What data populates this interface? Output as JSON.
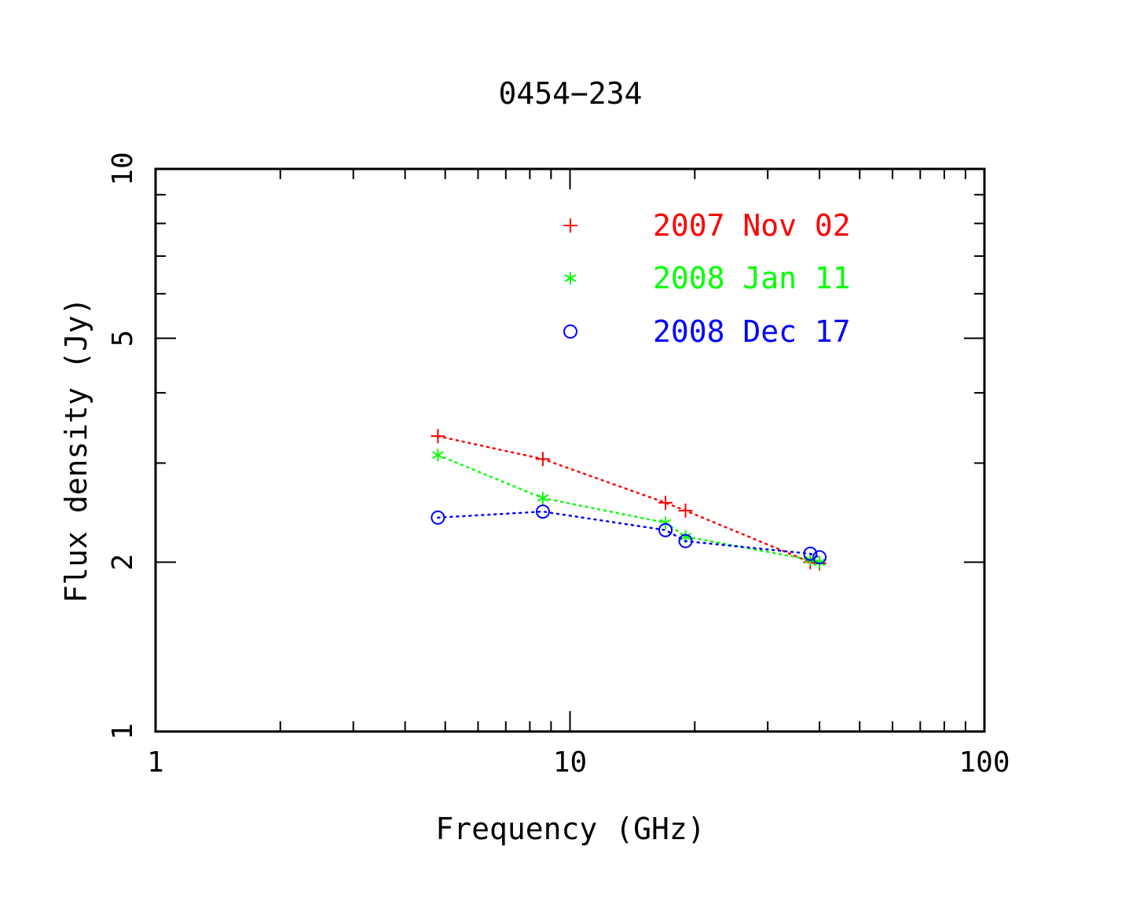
{
  "chart_data": {
    "type": "scatter",
    "title": "0454−234",
    "xlabel": "Frequency (GHz)",
    "ylabel": "Flux density (Jy)",
    "xscale": "log",
    "yscale": "log",
    "xlim": [
      1,
      100
    ],
    "ylim": [
      1,
      10
    ],
    "xticks": [
      {
        "value": 1,
        "label": "1"
      },
      {
        "value": 10,
        "label": "10"
      },
      {
        "value": 100,
        "label": "100"
      }
    ],
    "yticks": [
      {
        "value": 1,
        "label": "1"
      },
      {
        "value": 2,
        "label": "2"
      },
      {
        "value": 5,
        "label": "5"
      },
      {
        "value": 10,
        "label": "10"
      }
    ],
    "grid": false,
    "legend_position": "top-right",
    "series": [
      {
        "name": "2007 Nov 02",
        "color": "#ff0000",
        "marker": "plus",
        "line": "dotted",
        "x": [
          4.8,
          8.6,
          17,
          19,
          38,
          40
        ],
        "y": [
          3.35,
          3.05,
          2.55,
          2.47,
          2.0,
          1.99
        ]
      },
      {
        "name": "2008 Jan 11",
        "color": "#00ff00",
        "marker": "asterisk",
        "line": "dotted",
        "x": [
          4.8,
          8.6,
          17,
          19,
          38,
          40
        ],
        "y": [
          3.1,
          2.6,
          2.35,
          2.22,
          2.02,
          2.0
        ]
      },
      {
        "name": "2008 Dec 17",
        "color": "#0000ff",
        "marker": "circle",
        "line": "dotted",
        "x": [
          4.8,
          8.6,
          17,
          19,
          38,
          40
        ],
        "y": [
          2.4,
          2.46,
          2.28,
          2.18,
          2.07,
          2.04
        ]
      }
    ]
  }
}
